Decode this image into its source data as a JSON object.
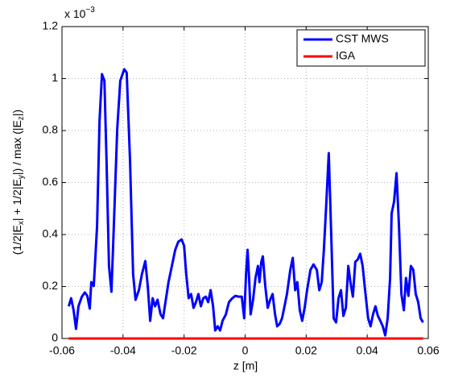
{
  "chart_data": {
    "type": "line",
    "xlabel": "z [m]",
    "ylabel_parts": [
      "(1/2|E",
      "x",
      "| + 1/2|E",
      "y",
      "|) / max (|E",
      "z",
      "|)"
    ],
    "y_multiplier": {
      "base": "x 10",
      "exponent": "−3"
    },
    "xlim": [
      -0.06,
      0.06
    ],
    "xticks": [
      -0.06,
      -0.04,
      -0.02,
      0,
      0.02,
      0.04,
      0.06
    ],
    "ylim": [
      0,
      1.2
    ],
    "yticks": [
      0,
      0.2,
      0.4,
      0.6,
      0.8,
      1,
      1.2
    ],
    "grid": true,
    "legend": "northeast",
    "series": [
      {
        "name": "CST MWS",
        "color": "#0000ff",
        "x": [
          -0.0578,
          -0.057,
          -0.0562,
          -0.0554,
          -0.0546,
          -0.0535,
          -0.0525,
          -0.0517,
          -0.0509,
          -0.0504,
          -0.0496,
          -0.0491,
          -0.0485,
          -0.0477,
          -0.0469,
          -0.0461,
          -0.0454,
          -0.0446,
          -0.0438,
          -0.0432,
          -0.0419,
          -0.0409,
          -0.0396,
          -0.0388,
          -0.0377,
          -0.0367,
          -0.0359,
          -0.0348,
          -0.0338,
          -0.0327,
          -0.0319,
          -0.0311,
          -0.0303,
          -0.0295,
          -0.0287,
          -0.0277,
          -0.0269,
          -0.0261,
          -0.0251,
          -0.024,
          -0.0229,
          -0.0219,
          -0.0208,
          -0.02,
          -0.0193,
          -0.0185,
          -0.0177,
          -0.0169,
          -0.0161,
          -0.0153,
          -0.0145,
          -0.0137,
          -0.0129,
          -0.0121,
          -0.0113,
          -0.0105,
          -0.0098,
          -0.009,
          -0.0082,
          -0.0074,
          -0.0063,
          -0.0053,
          -0.0042,
          -0.0032,
          -0.0021,
          -0.0011,
          -0.0003,
          0.0003,
          0.0008,
          0.0013,
          0.0018,
          0.0026,
          0.0034,
          0.0042,
          0.0047,
          0.0053,
          0.0058,
          0.0066,
          0.0074,
          0.0082,
          0.009,
          0.0098,
          0.0105,
          0.0113,
          0.0121,
          0.0129,
          0.0137,
          0.0148,
          0.0156,
          0.0164,
          0.0171,
          0.0179,
          0.0187,
          0.0195,
          0.0203,
          0.0214,
          0.0224,
          0.0235,
          0.0243,
          0.0251,
          0.0258,
          0.0266,
          0.0274,
          0.0282,
          0.029,
          0.0298,
          0.0306,
          0.0314,
          0.0322,
          0.033,
          0.0338,
          0.0345,
          0.0353,
          0.0361,
          0.0369,
          0.0377,
          0.0385,
          0.0393,
          0.0403,
          0.0411,
          0.0419,
          0.0427,
          0.0435,
          0.0443,
          0.0451,
          0.0459,
          0.0467,
          0.0475,
          0.048,
          0.0488,
          0.0496,
          0.0504,
          0.0512,
          0.052,
          0.0527,
          0.0535,
          0.0543,
          0.0551,
          0.0559,
          0.0567,
          0.0575,
          0.0583
        ],
        "values": [
          0.124,
          0.155,
          0.109,
          0.037,
          0.124,
          0.161,
          0.177,
          0.164,
          0.115,
          0.217,
          0.202,
          0.304,
          0.434,
          0.837,
          1.017,
          0.992,
          0.682,
          0.279,
          0.18,
          0.372,
          0.806,
          0.992,
          1.036,
          1.023,
          0.682,
          0.248,
          0.149,
          0.186,
          0.248,
          0.298,
          0.202,
          0.068,
          0.155,
          0.124,
          0.149,
          0.093,
          0.078,
          0.14,
          0.217,
          0.279,
          0.341,
          0.372,
          0.381,
          0.357,
          0.248,
          0.155,
          0.171,
          0.118,
          0.14,
          0.171,
          0.124,
          0.155,
          0.161,
          0.14,
          0.186,
          0.124,
          0.031,
          0.047,
          0.031,
          0.068,
          0.093,
          0.14,
          0.155,
          0.164,
          0.161,
          0.161,
          0.078,
          0.248,
          0.341,
          0.233,
          0.093,
          0.149,
          0.233,
          0.279,
          0.217,
          0.295,
          0.316,
          0.202,
          0.118,
          0.149,
          0.171,
          0.093,
          0.047,
          0.056,
          0.078,
          0.124,
          0.171,
          0.264,
          0.31,
          0.186,
          0.217,
          0.109,
          0.068,
          0.118,
          0.186,
          0.264,
          0.285,
          0.264,
          0.186,
          0.217,
          0.341,
          0.521,
          0.713,
          0.403,
          0.078,
          0.062,
          0.155,
          0.186,
          0.087,
          0.118,
          0.279,
          0.217,
          0.161,
          0.295,
          0.304,
          0.326,
          0.279,
          0.186,
          0.078,
          0.047,
          0.093,
          0.124,
          0.087,
          0.068,
          0.047,
          0.012,
          0.078,
          0.233,
          0.481,
          0.527,
          0.636,
          0.434,
          0.171,
          0.109,
          0.233,
          0.164,
          0.279,
          0.264,
          0.171,
          0.14,
          0.078,
          0.062
        ]
      },
      {
        "name": "IGA",
        "color": "#ff0000",
        "x": [
          -0.0578,
          0.0583
        ],
        "values": [
          0,
          0
        ]
      }
    ]
  }
}
